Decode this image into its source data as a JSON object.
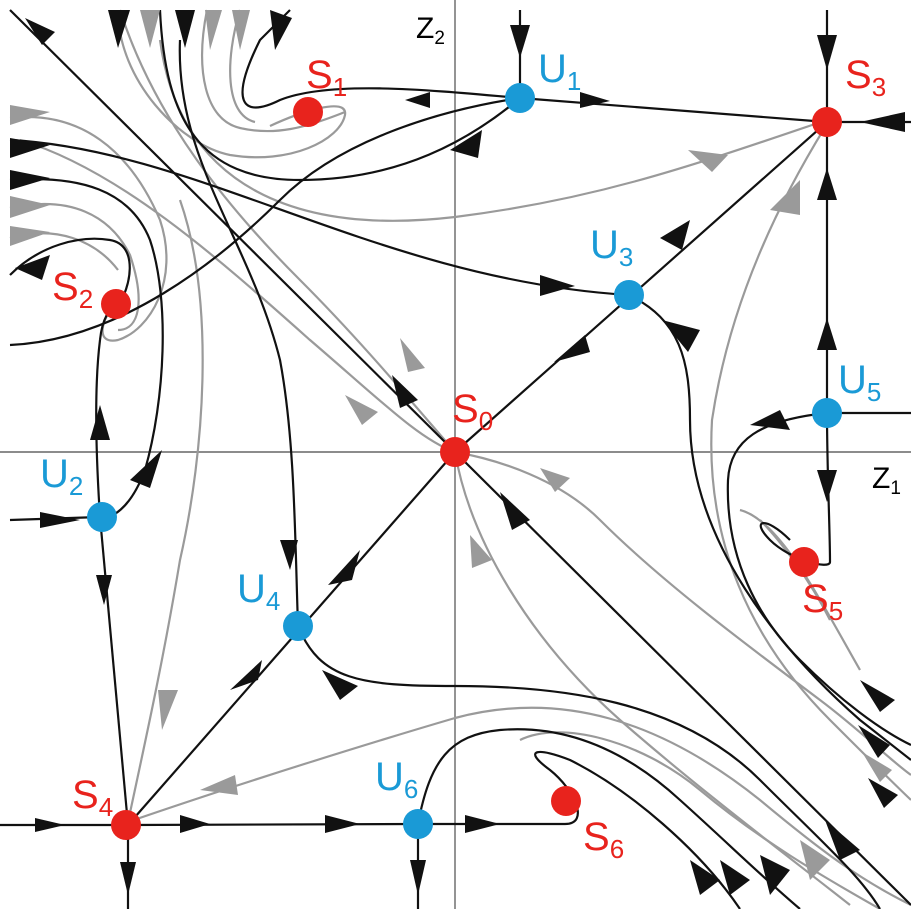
{
  "axes": {
    "horizontal": {
      "letter": "Z",
      "sub": "1"
    },
    "vertical": {
      "letter": "Z",
      "sub": "2"
    }
  },
  "fixed_points": {
    "stable": [
      {
        "id": "S0",
        "letter": "S",
        "sub": "0"
      },
      {
        "id": "S1",
        "letter": "S",
        "sub": "1"
      },
      {
        "id": "S2",
        "letter": "S",
        "sub": "2"
      },
      {
        "id": "S3",
        "letter": "S",
        "sub": "3"
      },
      {
        "id": "S4",
        "letter": "S",
        "sub": "4"
      },
      {
        "id": "S5",
        "letter": "S",
        "sub": "5"
      },
      {
        "id": "S6",
        "letter": "S",
        "sub": "6"
      }
    ],
    "unstable": [
      {
        "id": "U1",
        "letter": "U",
        "sub": "1"
      },
      {
        "id": "U2",
        "letter": "U",
        "sub": "2"
      },
      {
        "id": "U3",
        "letter": "U",
        "sub": "3"
      },
      {
        "id": "U4",
        "letter": "U",
        "sub": "4"
      },
      {
        "id": "U5",
        "letter": "U",
        "sub": "5"
      },
      {
        "id": "U6",
        "letter": "U",
        "sub": "6"
      }
    ]
  },
  "colors": {
    "stable": "#e8231d",
    "unstable": "#1a9ad6",
    "label_stable": "#e8231d",
    "label_unstable": "#1a9ad6",
    "trajectory_primary": "#111111",
    "trajectory_secondary": "#9a9a9a",
    "axis": "#666666"
  }
}
